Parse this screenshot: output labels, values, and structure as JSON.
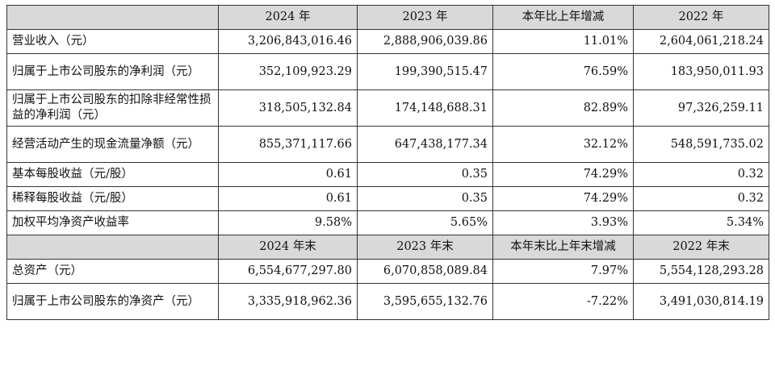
{
  "table1": {
    "headers": [
      "",
      "2024 年",
      "2023 年",
      "本年比上年增减",
      "2022 年"
    ],
    "rows": [
      {
        "label": "营业收入（元）",
        "v2024": "3,206,843,016.46",
        "v2023": "2,888,906,039.86",
        "change": "11.01%",
        "v2022": "2,604,061,218.24"
      },
      {
        "label": "归属于上市公司股东的净利润（元）",
        "v2024": "352,109,923.29",
        "v2023": "199,390,515.47",
        "change": "76.59%",
        "v2022": "183,950,011.93"
      },
      {
        "label": "归属于上市公司股东的扣除非经常性损益的净利润（元）",
        "v2024": "318,505,132.84",
        "v2023": "174,148,688.31",
        "change": "82.89%",
        "v2022": "97,326,259.11"
      },
      {
        "label": "经营活动产生的现金流量净额（元）",
        "v2024": "855,371,117.66",
        "v2023": "647,438,177.34",
        "change": "32.12%",
        "v2022": "548,591,735.02"
      },
      {
        "label": "基本每股收益（元/股）",
        "v2024": "0.61",
        "v2023": "0.35",
        "change": "74.29%",
        "v2022": "0.32"
      },
      {
        "label": "稀释每股收益（元/股）",
        "v2024": "0.61",
        "v2023": "0.35",
        "change": "74.29%",
        "v2022": "0.32"
      },
      {
        "label": "加权平均净资产收益率",
        "v2024": "9.58%",
        "v2023": "5.65%",
        "change": "3.93%",
        "v2022": "5.34%"
      }
    ]
  },
  "table2": {
    "headers": [
      "",
      "2024 年末",
      "2023 年末",
      "本年末比上年末增减",
      "2022 年末"
    ],
    "rows": [
      {
        "label": "总资产（元）",
        "v2024": "6,554,677,297.80",
        "v2023": "6,070,858,089.84",
        "change": "7.97%",
        "v2022": "5,554,128,293.28"
      },
      {
        "label": "归属于上市公司股东的净资产（元）",
        "v2024": "3,335,918,962.36",
        "v2023": "3,595,655,132.76",
        "change": "-7.22%",
        "v2022": "3,491,030,814.19"
      }
    ]
  }
}
